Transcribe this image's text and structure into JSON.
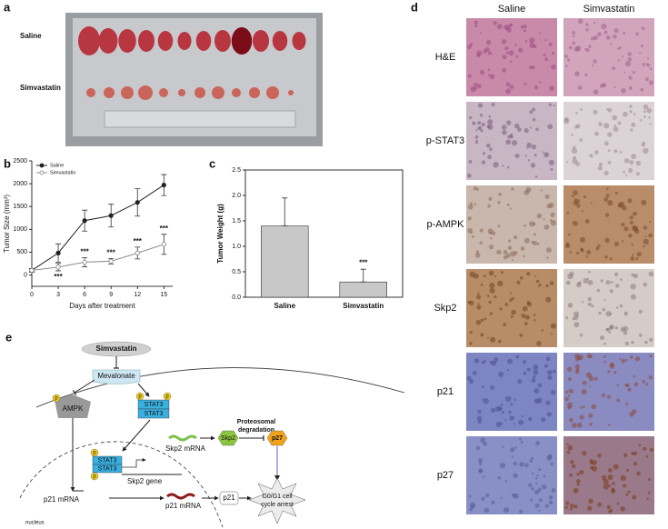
{
  "panel_labels": [
    "a",
    "b",
    "c",
    "d",
    "e"
  ],
  "photo": {
    "rows": [
      "Saline",
      "Simvastatin"
    ]
  },
  "chart_data": [
    {
      "type": "line",
      "ylabel": "Tumor Size (mm³)",
      "xlabel": "Days after treatment",
      "x": [
        0,
        3,
        6,
        9,
        12,
        15
      ],
      "series": [
        {
          "name": "Saline",
          "color": "#222222",
          "marker": "filled",
          "values": [
            100,
            480,
            1190,
            1300,
            1590,
            1970
          ],
          "errors": [
            40,
            200,
            230,
            250,
            300,
            230
          ]
        },
        {
          "name": "Simvastatin",
          "color": "#888888",
          "marker": "open",
          "values": [
            100,
            170,
            280,
            300,
            480,
            670
          ],
          "errors": [
            30,
            80,
            100,
            60,
            130,
            220
          ]
        }
      ],
      "annotations": [
        {
          "text": "***",
          "x": 3
        },
        {
          "text": "***",
          "x": 6
        },
        {
          "text": "***",
          "x": 9
        },
        {
          "text": "***",
          "x": 12
        },
        {
          "text": "***",
          "x": 15
        }
      ],
      "xlim": [
        0,
        16
      ],
      "xticks": [
        0,
        3,
        6,
        9,
        12,
        15
      ],
      "ylim": [
        -250,
        2500
      ],
      "yticks": [
        0,
        500,
        1000,
        1500,
        2000,
        2500
      ],
      "legend": "top-left"
    },
    {
      "type": "bar",
      "ylabel": "Tumor Weight (g)",
      "categories": [
        "Saline",
        "Simvastatin"
      ],
      "values": [
        1.4,
        0.3
      ],
      "errors": [
        0.55,
        0.25
      ],
      "color": "#c8c8c8",
      "annotations": [
        {
          "text": "***",
          "category": 1
        }
      ],
      "ylim": [
        0,
        2.5
      ],
      "yticks": [
        {
          "value": 0,
          "label": "0.0"
        },
        0.5,
        {
          "value": 1,
          "label": "1.0"
        },
        1.5,
        {
          "value": 2,
          "label": "2.0"
        },
        2.5
      ]
    }
  ],
  "histology": {
    "columns": [
      "Saline",
      "Simvastatin"
    ],
    "rows": [
      "H&E",
      "p-STAT3",
      "p-AMPK",
      "Skp2",
      "p21",
      "p27"
    ]
  },
  "diagram": {
    "simvastatin": "Simvastatin",
    "mevalonate": "Mevalonate",
    "ampk": "AMPK",
    "phospho": "p",
    "stat3": "STAT3",
    "skp2_mrna": "Skp2 mRNA",
    "skp2": "Skp2",
    "degradation": [
      "Proteosomal",
      "degradation"
    ],
    "p27": "p27",
    "skp2_gene": "Skp2 gene",
    "p21_mrna": "p21 mRNA",
    "p21": "p21",
    "arrest": [
      "G0/G1 cell",
      "cycle arrest"
    ],
    "nucleus": "nucleus"
  }
}
